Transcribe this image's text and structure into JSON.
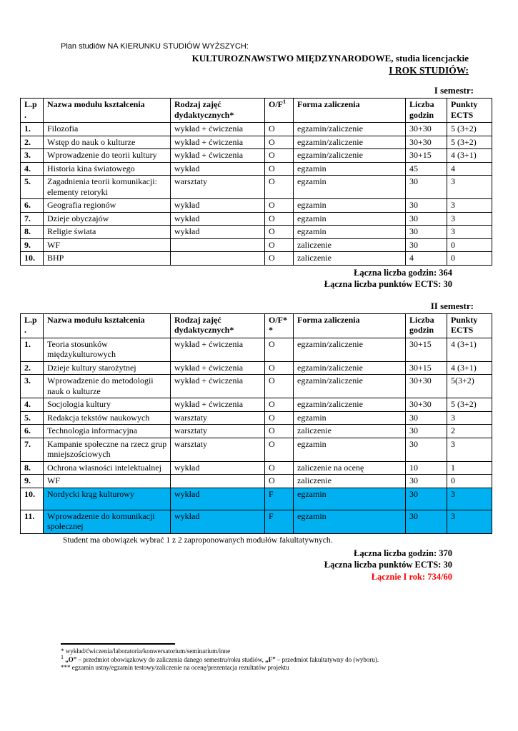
{
  "colors": {
    "highlight_blue": "#00b0f0",
    "total_red": "#ff0000"
  },
  "header": {
    "plan_line": "Plan studiów NA KIERUNKU STUDIÓW WYŻSZYCH:",
    "program_line": "KULTUROZNAWSTWO MIĘDZYNARODOWE, studia licencjackie",
    "year_line": "I ROK STUDIÓW:"
  },
  "semester1": {
    "label": "I semestr:",
    "headers": [
      {
        "label": "L.p\n."
      },
      {
        "label": "Nazwa modułu kształcenia"
      },
      {
        "label": "Rodzaj zajęć\ndydaktycznych*"
      },
      {
        "label": "O/F",
        "sup": "1"
      },
      {
        "label": "Forma zaliczenia"
      },
      {
        "label": "Liczba\ngodzin"
      },
      {
        "label": "Punkty\nECTS"
      }
    ],
    "rows": [
      {
        "cells": [
          "1.",
          "Filozofia",
          "wykład + ćwiczenia",
          "O",
          "egzamin/zaliczenie",
          "30+30",
          "5 (3+2)"
        ]
      },
      {
        "cells": [
          "2.",
          "Wstęp do nauk o kulturze",
          "wykład + ćwiczenia",
          "O",
          "egzamin/zaliczenie",
          "30+30",
          "5 (3+2)"
        ]
      },
      {
        "cells": [
          "3.",
          "Wprowadzenie do teorii kultury",
          "wykład + ćwiczenia",
          "O",
          "egzamin/zaliczenie",
          "30+15",
          "4 (3+1)"
        ]
      },
      {
        "cells": [
          "4.",
          "Historia kina światowego",
          "wykład",
          "O",
          "egzamin",
          "45",
          "4"
        ]
      },
      {
        "cells": [
          "5.",
          "Zagadnienia teorii komunikacji: elementy retoryki",
          "warsztaty",
          "O",
          "egzamin",
          "30",
          "3"
        ]
      },
      {
        "cells": [
          "6.",
          "Geografia regionów",
          "wykład",
          "O",
          "egzamin",
          "30",
          "3"
        ]
      },
      {
        "cells": [
          "7.",
          "Dzieje obyczajów",
          "wykład",
          "O",
          "egzamin",
          "30",
          "3"
        ]
      },
      {
        "cells": [
          "8.",
          "Religie świata",
          "wykład",
          "O",
          "egzamin",
          "30",
          "3"
        ]
      },
      {
        "cells": [
          "9.",
          "WF",
          "",
          "O",
          "zaliczenie",
          "30",
          "0"
        ]
      },
      {
        "cells": [
          "10.",
          "BHP",
          "",
          "O",
          "zaliczenie",
          "4",
          "0"
        ]
      }
    ],
    "totals": [
      "Łączna liczba godzin: 364",
      "Łączna liczba punktów ECTS: 30"
    ]
  },
  "semester2": {
    "label": "II semestr:",
    "headers": [
      {
        "label": "L.p\n."
      },
      {
        "label": "Nazwa modułu kształcenia"
      },
      {
        "label": "Rodzaj zajęć\ndydaktycznych*"
      },
      {
        "label": "O/F*\n*"
      },
      {
        "label": "Forma zaliczenia"
      },
      {
        "label": "Liczba\ngodzin"
      },
      {
        "label": "Punkty\nECTS"
      }
    ],
    "rows": [
      {
        "cells": [
          "1.",
          "Teoria stosunków międzykulturowych",
          "wykład + ćwiczenia",
          "O",
          "egzamin/zaliczenie",
          "30+15",
          "4 (3+1)"
        ]
      },
      {
        "cells": [
          "2.",
          "Dzieje kultury starożytnej",
          "wykład + ćwiczenia",
          "O",
          "egzamin/zaliczenie",
          "30+15",
          "4 (3+1)"
        ]
      },
      {
        "cells": [
          "3.",
          "Wprowadzenie do metodologii nauk o kulturze",
          "wykład + ćwiczenia",
          "O",
          "egzamin/zaliczenie",
          "30+30",
          "5(3+2)"
        ]
      },
      {
        "cells": [
          "4.",
          "Socjologia kultury",
          "wykład + ćwiczenia",
          "O",
          "egzamin/zaliczenie",
          "30+30",
          "5 (3+2)"
        ]
      },
      {
        "cells": [
          "5.",
          "Redakcja tekstów naukowych",
          "warsztaty",
          "O",
          "egzamin",
          "30",
          "3"
        ]
      },
      {
        "cells": [
          "6.",
          "Technologia informacyjna",
          "warsztaty",
          "O",
          "zaliczenie",
          "30",
          "2"
        ]
      },
      {
        "cells": [
          "7.",
          "Kampanie społeczne na rzecz grup mniejszościowych",
          "warsztaty",
          "O",
          "egzamin",
          "30",
          "3"
        ]
      },
      {
        "cells": [
          "8.",
          "Ochrona własności intelektualnej",
          "wykład",
          "O",
          "zaliczenie na ocenę",
          "10",
          "1"
        ]
      },
      {
        "cells": [
          "9.",
          "WF",
          "",
          "O",
          "zaliczenie",
          "30",
          "0"
        ]
      },
      {
        "cells": [
          "10.",
          "Nordycki krąg kulturowy",
          "wykład",
          "F",
          "egzamin",
          "30",
          "3"
        ],
        "highlight": true
      },
      {
        "cells": [
          "11.",
          "Wprowadzenie do komunikacji społecznej",
          "wykład",
          "F",
          "egzamin",
          "30",
          "3"
        ],
        "highlight": true
      }
    ],
    "note": "Student ma obowiązek wybrać 1 z 2 zaproponowanych modułów fakultatywnych.",
    "totals": [
      "Łączna liczba godzin: 370",
      "Łączna liczba punktów ECTS: 30"
    ],
    "grand_total": "Łącznie I rok: 734/60"
  },
  "footnotes": [
    {
      "parts": [
        {
          "t": "* wykład/ćwiczenia/laboratoria/konwersatorium/seminarium/inne"
        }
      ]
    },
    {
      "sup": "1",
      "parts": [
        {
          "t": " "
        },
        {
          "t": "„O”",
          "b": true
        },
        {
          "t": " – przedmiot obowiązkowy do zaliczenia danego semestru/roku studiów, "
        },
        {
          "t": "„F”",
          "b": true
        },
        {
          "t": " – przedmiot fakultatywny do (wyboru)."
        }
      ]
    },
    {
      "parts": [
        {
          "t": "*** egzamin ustny/egzamin testowy/zaliczenie na ocenę/prezentacja rezultatów projektu"
        }
      ]
    }
  ]
}
